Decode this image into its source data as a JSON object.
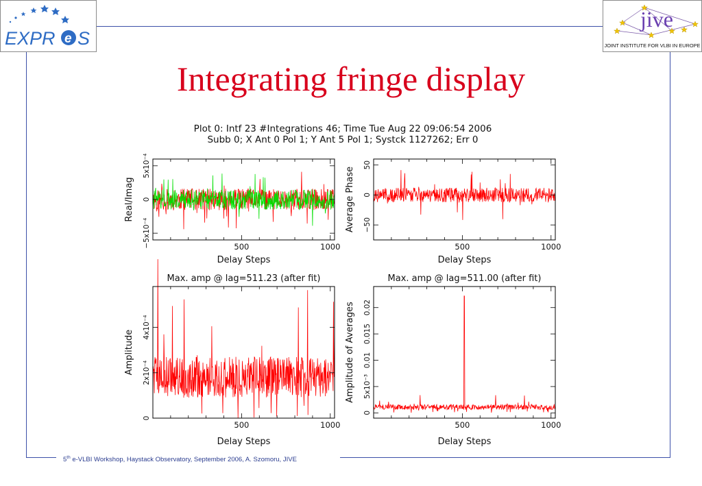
{
  "slide": {
    "title": "Integrating fringe display",
    "footer": {
      "superscript_number": "5",
      "superscript_suffix": "th",
      "text": " e-VLBI Workshop, Haystack Observatory, September 2006, A. Szomoru, JIVE"
    },
    "logos": {
      "left": {
        "text_expr": "EXPR",
        "text_e": "e",
        "text_s": "S"
      },
      "right": {
        "name": "jive",
        "subtitle": "JOINT INSTITUTE FOR VLBI IN EUROPE"
      }
    },
    "colors": {
      "frame": "#3b4fa8",
      "title": "#d8001c",
      "series_red": "#ff0000",
      "series_green": "#00e000"
    }
  },
  "plot_header": {
    "line1": "Plot 0: Intf 23 #Integrations 46; Time Tue Aug 22 09:06:54 2006",
    "line2": "Subb 0; X Ant 0 Pol 1; Y Ant 5 Pol 1; Systck 1127262; Err 0"
  },
  "chart_data": [
    {
      "type": "line",
      "id": "real-imag",
      "title": "",
      "xlabel": "Delay Steps",
      "ylabel": "Real/Imag",
      "xlim": [
        0,
        1024
      ],
      "ylim": [
        -0.0006,
        0.0006
      ],
      "xticks": [
        "500",
        "1000"
      ],
      "yticks": [
        "5x10⁻⁴",
        "0",
        "−5x10⁻⁴"
      ],
      "series": [
        {
          "color": "#ff0000",
          "noise": {
            "amplitude": 0.00016,
            "spike_amplitude": 0.00045
          }
        },
        {
          "color": "#00e000",
          "noise": {
            "amplitude": 0.00015,
            "spike_amplitude": 0.0004
          }
        }
      ]
    },
    {
      "type": "line",
      "id": "average-phase",
      "title": "",
      "xlabel": "Delay Steps",
      "ylabel": "Average Phase",
      "xlim": [
        0,
        1024
      ],
      "ylim": [
        -75,
        60
      ],
      "xticks": [
        "500",
        "1000"
      ],
      "yticks": [
        "50",
        "0",
        "−50"
      ],
      "series": [
        {
          "color": "#ff0000",
          "noise": {
            "amplitude": 12,
            "spike_amplitude": 45
          }
        }
      ]
    },
    {
      "type": "line",
      "id": "amplitude",
      "title": "Max. amp @ lag=511.23 (after fit)",
      "xlabel": "Delay Steps",
      "ylabel": "Amplitude",
      "xlim": [
        0,
        1024
      ],
      "ylim": [
        0,
        0.00058
      ],
      "xticks": [
        "500",
        "1000"
      ],
      "yticks": [
        "0",
        "2x10⁻⁴",
        "4x10⁻⁴"
      ],
      "series": [
        {
          "color": "#ff0000",
          "noise": {
            "mean": 0.00018,
            "amplitude": 9e-05,
            "spike_amplitude": 0.00055
          }
        }
      ]
    },
    {
      "type": "line",
      "id": "amplitude-of-averages",
      "title": "Max. amp @ lag=511.00 (after fit)",
      "xlabel": "Delay Steps",
      "ylabel": "Amplitude of Averages",
      "xlim": [
        0,
        1024
      ],
      "ylim": [
        -0.001,
        0.024
      ],
      "xticks": [
        "500",
        "1000"
      ],
      "yticks": [
        "0",
        "5x10⁻³",
        "0.01",
        "0.015",
        "0.02"
      ],
      "series": [
        {
          "color": "#ff0000",
          "noise": {
            "mean": 0.0011,
            "amplitude": 0.0005,
            "spike_amplitude": 0.0024
          },
          "peak": {
            "x": 511,
            "y": 0.0222
          }
        }
      ]
    }
  ]
}
